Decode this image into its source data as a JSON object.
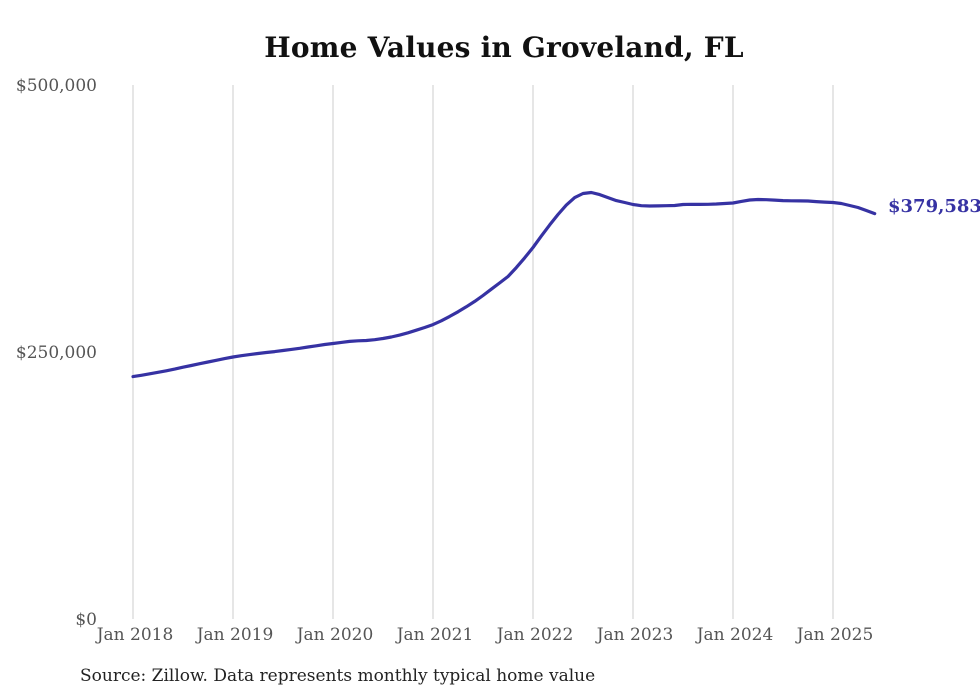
{
  "title": "Home Values in Groveland, FL",
  "source_note": "Source: Zillow. Data represents monthly typical home value",
  "end_label": "$379,583",
  "colors": {
    "line": "#3632a3",
    "end_label": "#3632a3",
    "grid": "#cccccc",
    "tick_text": "#555555",
    "title_text": "#111111",
    "source_text": "#222222",
    "background": "#ffffff"
  },
  "chart_data": {
    "type": "line",
    "title": "Home Values in Groveland, FL",
    "ylabel": "",
    "xlabel": "",
    "unit": "USD",
    "ylim": [
      0,
      500000
    ],
    "grid": "vertical-only",
    "legend": "none",
    "y_ticks": [
      {
        "value": 0,
        "label": "$0"
      },
      {
        "value": 250000,
        "label": "$250,000"
      },
      {
        "value": 500000,
        "label": "$500,000"
      }
    ],
    "x_tick_labels": [
      "Jan 2018",
      "Jan 2019",
      "Jan 2020",
      "Jan 2021",
      "Jan 2022",
      "Jan 2023",
      "Jan 2024",
      "Jan 2025"
    ],
    "final_value": 379583,
    "x": [
      "Jan 2018",
      "Feb 2018",
      "Mar 2018",
      "Apr 2018",
      "May 2018",
      "Jun 2018",
      "Jul 2018",
      "Aug 2018",
      "Sep 2018",
      "Oct 2018",
      "Nov 2018",
      "Dec 2018",
      "Jan 2019",
      "Feb 2019",
      "Mar 2019",
      "Apr 2019",
      "May 2019",
      "Jun 2019",
      "Jul 2019",
      "Aug 2019",
      "Sep 2019",
      "Oct 2019",
      "Nov 2019",
      "Dec 2019",
      "Jan 2020",
      "Feb 2020",
      "Mar 2020",
      "Apr 2020",
      "May 2020",
      "Jun 2020",
      "Jul 2020",
      "Aug 2020",
      "Sep 2020",
      "Oct 2020",
      "Nov 2020",
      "Dec 2020",
      "Jan 2021",
      "Feb 2021",
      "Mar 2021",
      "Apr 2021",
      "May 2021",
      "Jun 2021",
      "Jul 2021",
      "Aug 2021",
      "Sep 2021",
      "Oct 2021",
      "Nov 2021",
      "Dec 2021",
      "Jan 2022",
      "Feb 2022",
      "Mar 2022",
      "Apr 2022",
      "May 2022",
      "Jun 2022",
      "Jul 2022",
      "Aug 2022",
      "Sep 2022",
      "Oct 2022",
      "Nov 2022",
      "Dec 2022",
      "Jan 2023",
      "Feb 2023",
      "Mar 2023",
      "Apr 2023",
      "May 2023",
      "Jun 2023",
      "Jul 2023",
      "Aug 2023",
      "Sep 2023",
      "Oct 2023",
      "Nov 2023",
      "Dec 2023",
      "Jan 2024",
      "Feb 2024",
      "Mar 2024",
      "Apr 2024",
      "May 2024",
      "Jun 2024",
      "Jul 2024",
      "Aug 2024",
      "Sep 2024",
      "Oct 2024",
      "Nov 2024",
      "Dec 2024",
      "Jan 2025",
      "Feb 2025",
      "Mar 2025",
      "Apr 2025",
      "May 2025",
      "Jun 2025"
    ],
    "values": [
      227000,
      228200,
      229600,
      231000,
      232400,
      234000,
      235800,
      237400,
      239000,
      240600,
      242200,
      243800,
      245300,
      246500,
      247600,
      248600,
      249500,
      250400,
      251400,
      252400,
      253500,
      254700,
      255800,
      257000,
      258000,
      259000,
      259900,
      260500,
      260800,
      261500,
      262600,
      264000,
      265800,
      268000,
      270400,
      272900,
      275700,
      279200,
      283300,
      287600,
      292300,
      297400,
      302900,
      308800,
      314700,
      320700,
      329000,
      338200,
      347800,
      358500,
      369000,
      378700,
      387500,
      394600,
      398400,
      399300,
      397400,
      394600,
      391800,
      390000,
      388100,
      387000,
      386700,
      386800,
      387000,
      387200,
      388100,
      388300,
      388200,
      388300,
      388600,
      389000,
      389500,
      391000,
      392300,
      392800,
      392600,
      392200,
      391800,
      391600,
      391500,
      391400,
      390800,
      390400,
      390000,
      389000,
      387200,
      385300,
      382500,
      379583
    ]
  }
}
